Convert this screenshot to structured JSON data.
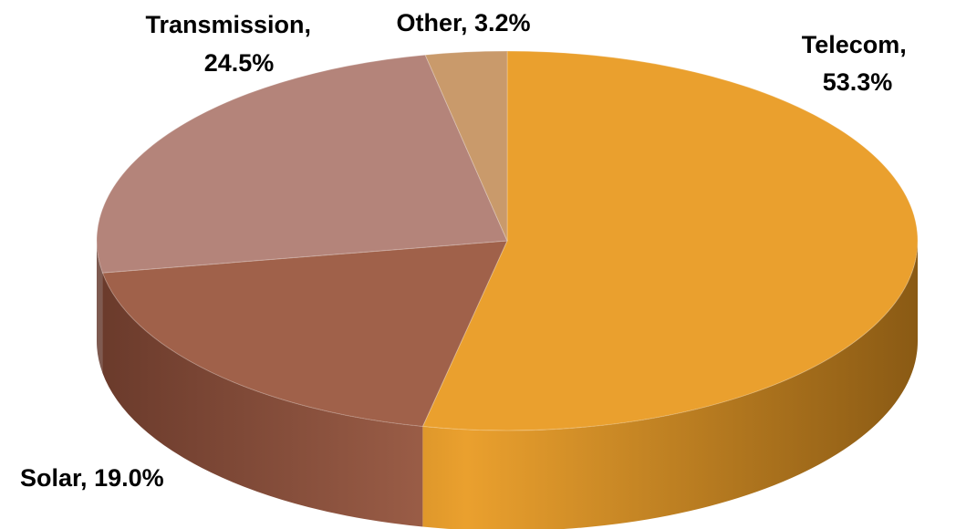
{
  "chart_data": {
    "type": "pie",
    "style": "3d",
    "slices": [
      {
        "label": "Telecom",
        "value": 53.3,
        "value_text": "53.3%",
        "color": "#EAA02E",
        "dark": "#8A5A14"
      },
      {
        "label": "Solar",
        "value": 19.0,
        "value_text": "19.0%",
        "color": "#A0614A",
        "dark": "#6A3A2B"
      },
      {
        "label": "Transmission",
        "value": 24.5,
        "value_text": "24.5%",
        "color": "#B4847A",
        "dark": "#7E5A50"
      },
      {
        "label": "Other",
        "value": 3.2,
        "value_text": "3.2%",
        "color": "#C99A6B",
        "dark": "#8C6A46"
      }
    ],
    "legend": "none",
    "labels": "outside, category name and percentage"
  }
}
